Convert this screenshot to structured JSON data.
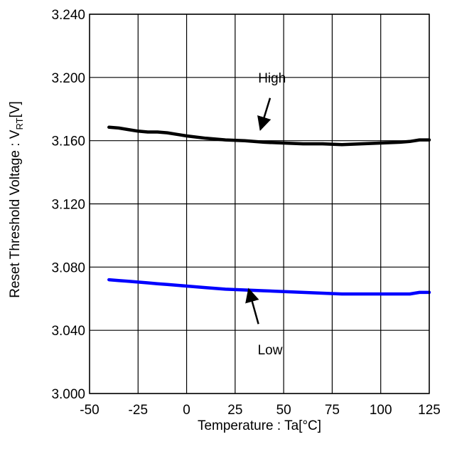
{
  "chart_data": {
    "type": "line",
    "title": "",
    "xlabel": "Temperature : Ta[°C]",
    "ylabel_main": "Reset Threshold Voltage : V",
    "ylabel_sub": "RT",
    "ylabel_unit": "[V]",
    "xlim": [
      -50,
      125
    ],
    "ylim": [
      3.0,
      3.24
    ],
    "xticks": [
      -50,
      -25,
      0,
      25,
      50,
      75,
      100,
      125
    ],
    "xtick_labels": [
      "-50",
      "-25",
      "0",
      "25",
      "50",
      "75",
      "100",
      "125"
    ],
    "yticks": [
      3.0,
      3.04,
      3.08,
      3.12,
      3.16,
      3.2,
      3.24
    ],
    "ytick_labels": [
      "3.000",
      "3.040",
      "3.080",
      "3.120",
      "3.160",
      "3.200",
      "3.240"
    ],
    "grid": true,
    "series": [
      {
        "name": "High",
        "color": "#000000",
        "x": [
          -40,
          -35,
          -30,
          -25,
          -20,
          -15,
          -10,
          -5,
          0,
          10,
          20,
          30,
          40,
          50,
          60,
          70,
          80,
          90,
          100,
          110,
          115,
          120,
          125
        ],
        "y": [
          3.1685,
          3.168,
          3.167,
          3.166,
          3.1655,
          3.1655,
          3.165,
          3.164,
          3.163,
          3.1615,
          3.1605,
          3.16,
          3.159,
          3.1585,
          3.158,
          3.158,
          3.1575,
          3.158,
          3.1585,
          3.159,
          3.1595,
          3.1605,
          3.1605
        ]
      },
      {
        "name": "Low",
        "color": "#0000ff",
        "x": [
          -40,
          -35,
          -30,
          -25,
          -20,
          -15,
          -10,
          -5,
          0,
          10,
          20,
          30,
          40,
          50,
          60,
          70,
          80,
          90,
          100,
          110,
          115,
          120,
          125
        ],
        "y": [
          3.072,
          3.0715,
          3.071,
          3.0705,
          3.07,
          3.0695,
          3.069,
          3.0685,
          3.068,
          3.067,
          3.066,
          3.0655,
          3.065,
          3.0645,
          3.064,
          3.0635,
          3.063,
          3.063,
          3.063,
          3.063,
          3.063,
          3.064,
          3.064
        ]
      }
    ],
    "annotations": [
      {
        "text": "High",
        "label_x": 44,
        "label_y": 3.2,
        "arrow_from": [
          43,
          3.187
        ],
        "arrow_to": [
          38,
          3.167
        ]
      },
      {
        "text": "Low",
        "label_x": 43,
        "label_y": 3.028,
        "arrow_from": [
          37,
          3.044
        ],
        "arrow_to": [
          32,
          3.066
        ]
      }
    ]
  }
}
